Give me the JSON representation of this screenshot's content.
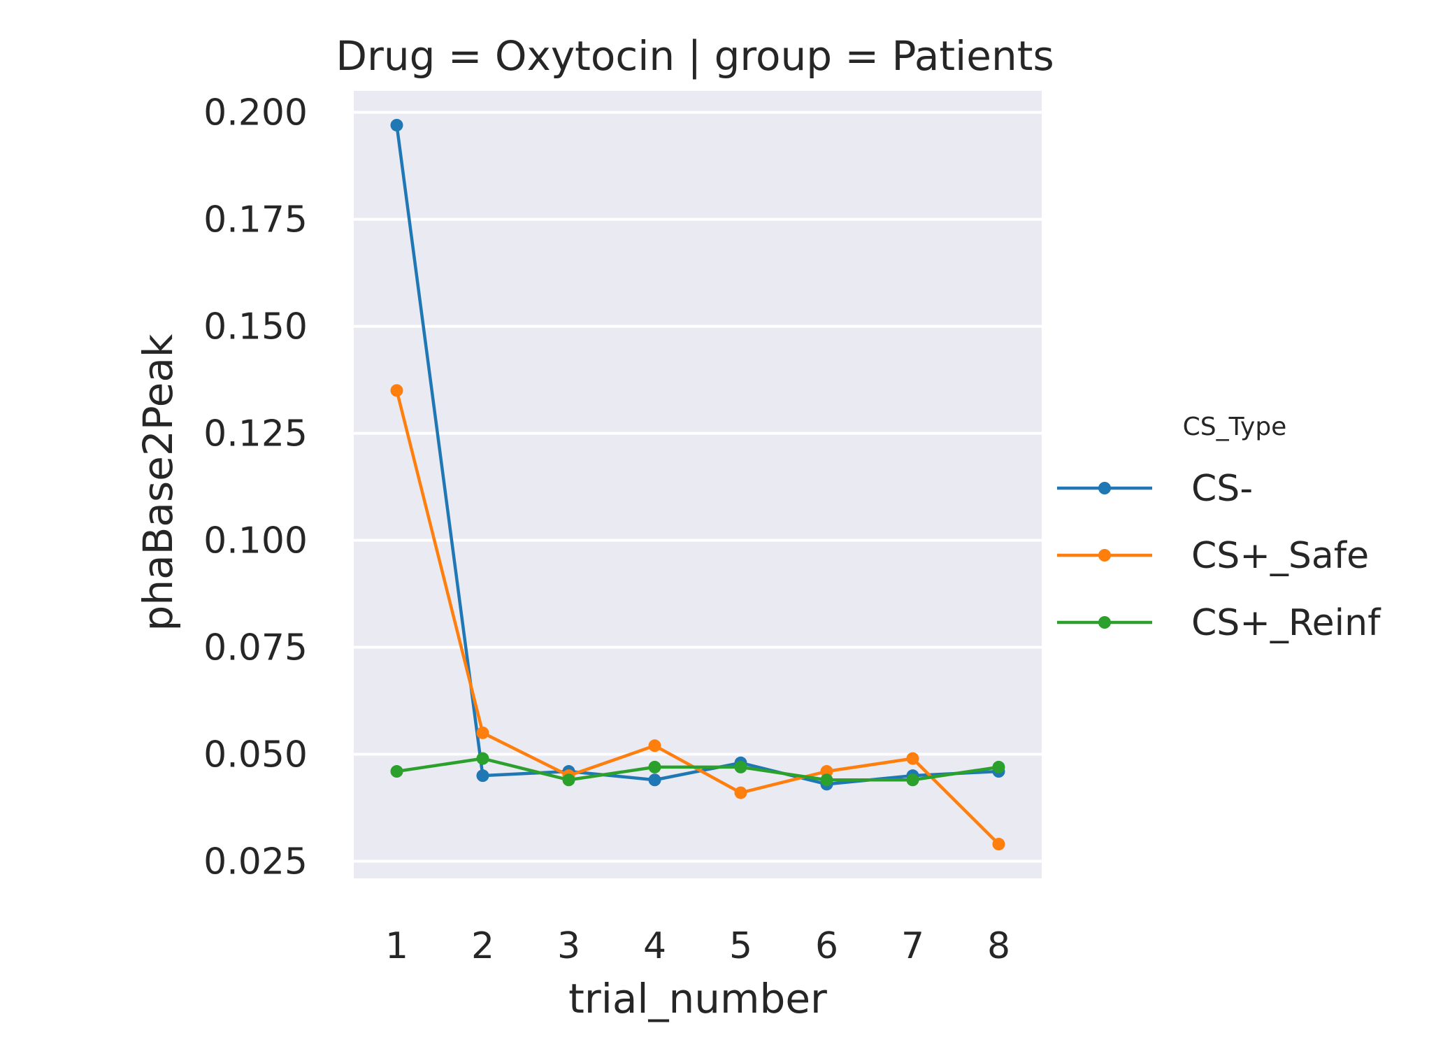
{
  "chart_data": {
    "type": "line",
    "title": "Drug = Oxytocin | group = Patients",
    "xlabel": "trial_number",
    "ylabel": "phaBase2Peak",
    "x": [
      1,
      2,
      3,
      4,
      5,
      6,
      7,
      8
    ],
    "x_tick_labels": [
      "1",
      "2",
      "3",
      "4",
      "5",
      "6",
      "7",
      "8"
    ],
    "ylim": [
      0.021,
      0.205
    ],
    "y_ticks": [
      0.025,
      0.05,
      0.075,
      0.1,
      0.125,
      0.15,
      0.175,
      0.2
    ],
    "y_tick_labels": [
      "0.025",
      "0.050",
      "0.075",
      "0.100",
      "0.125",
      "0.150",
      "0.175",
      "0.200"
    ],
    "grid": true,
    "background": "#eaeaf2",
    "legend": {
      "title": "CS_Type",
      "placement": "right"
    },
    "series": [
      {
        "name": "CS-",
        "color": "#1f77b4",
        "values": [
          0.197,
          0.045,
          0.046,
          0.044,
          0.048,
          0.043,
          0.045,
          0.046
        ]
      },
      {
        "name": "CS+_Safe",
        "color": "#ff7f0e",
        "values": [
          0.135,
          0.055,
          0.045,
          0.052,
          0.041,
          0.046,
          0.049,
          0.029
        ]
      },
      {
        "name": "CS+_Reinf",
        "color": "#2ca02c",
        "values": [
          0.046,
          0.049,
          0.044,
          0.047,
          0.047,
          0.044,
          0.044,
          0.047
        ]
      }
    ]
  }
}
